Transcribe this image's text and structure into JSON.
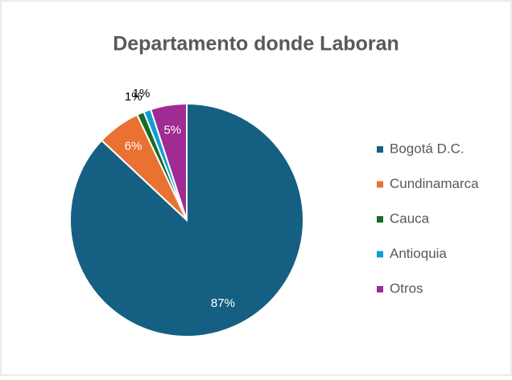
{
  "chart_data": {
    "type": "pie",
    "title": "Departamento donde Laboran",
    "categories": [
      "Bogotá D.C.",
      "Cundinamarca",
      "Cauca",
      "Antioquia",
      "Otros"
    ],
    "values": [
      87,
      6,
      1,
      1,
      5
    ],
    "value_labels": [
      "87%",
      "6%",
      "1%",
      "1%",
      "5%"
    ],
    "colors": [
      "#156082",
      "#e97132",
      "#196b24",
      "#0f9ed5",
      "#a02b93"
    ],
    "legend": "right"
  }
}
